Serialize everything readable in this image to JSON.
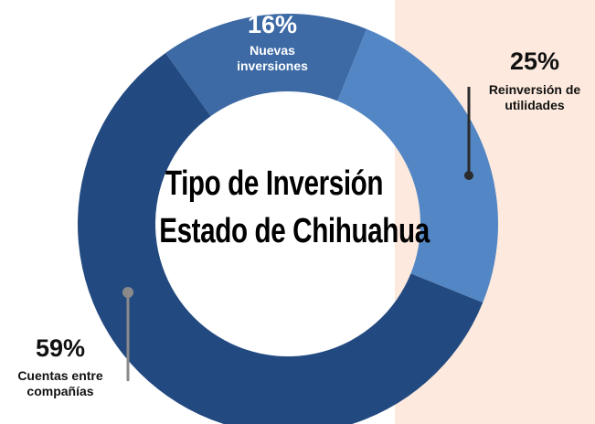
{
  "chart_data": {
    "type": "donut",
    "title": "Tipo de Inversión",
    "subtitle": "Estado de Chihuahua",
    "categories": [
      "Nuevas inversiones",
      "Reinversión de utilidades",
      "Cuentas entre compañías"
    ],
    "values": [
      16,
      25,
      59
    ],
    "value_labels": [
      "16%",
      "25%",
      "59%"
    ],
    "colors": [
      "#3d6aa5",
      "#5386c4",
      "#234a80"
    ]
  }
}
